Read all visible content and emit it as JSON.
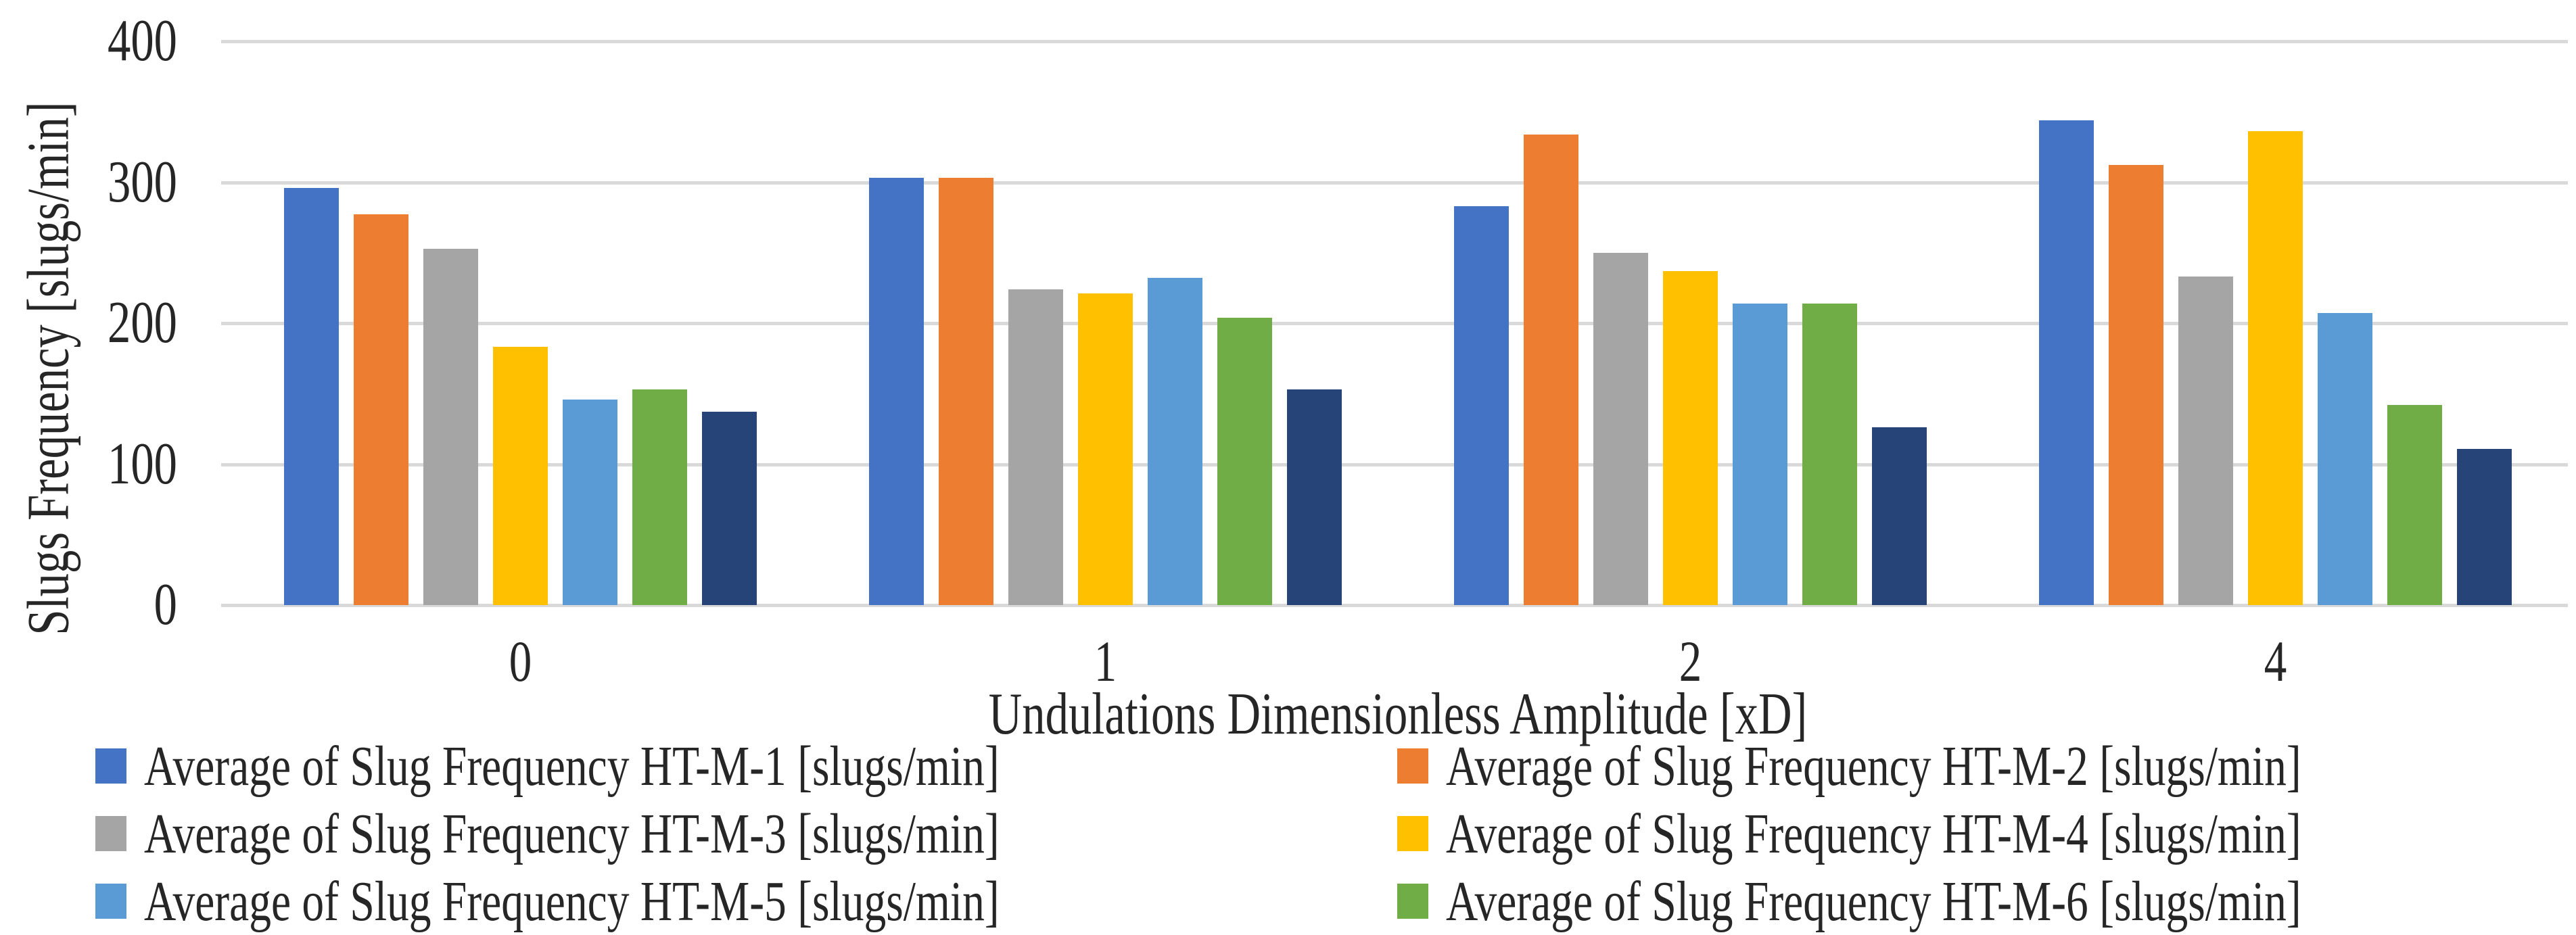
{
  "chart_data": {
    "type": "bar",
    "title": "",
    "xlabel": "Undulations Dimensionless Amplitude [xD]",
    "ylabel": "Slugs Frequency [slugs/min]",
    "categories": [
      "0",
      "1",
      "2",
      "4"
    ],
    "ylim": [
      0,
      400
    ],
    "yticks": [
      0,
      100,
      200,
      300,
      400
    ],
    "grid": "horizontal",
    "gridline_color": "#D9D9D9",
    "text_color": "#262626",
    "legend_position": "bottom",
    "legend_columns": 2,
    "series": [
      {
        "name": "Average of Slug Frequency HT-M-1 [slugs/min]",
        "color": "#4472C4",
        "in_legend": true,
        "values": [
          296,
          303,
          283,
          344
        ]
      },
      {
        "name": "Average of Slug Frequency HT-M-2 [slugs/min]",
        "color": "#ED7D31",
        "in_legend": true,
        "values": [
          277,
          303,
          334,
          312
        ]
      },
      {
        "name": "Average of Slug Frequency HT-M-3 [slugs/min]",
        "color": "#A5A5A5",
        "in_legend": true,
        "values": [
          253,
          224,
          250,
          233
        ]
      },
      {
        "name": "Average of Slug Frequency HT-M-4 [slugs/min]",
        "color": "#FFC000",
        "in_legend": true,
        "values": [
          183,
          221,
          237,
          336
        ]
      },
      {
        "name": "Average of Slug Frequency HT-M-5 [slugs/min]",
        "color": "#5B9BD5",
        "in_legend": true,
        "values": [
          146,
          232,
          214,
          207
        ]
      },
      {
        "name": "Average of Slug Frequency HT-M-6 [slugs/min]",
        "color": "#70AD47",
        "in_legend": true,
        "values": [
          153,
          204,
          214,
          142
        ]
      },
      {
        "name": "",
        "color": "#264478",
        "in_legend": false,
        "values": [
          137,
          153,
          126,
          111
        ]
      }
    ]
  }
}
